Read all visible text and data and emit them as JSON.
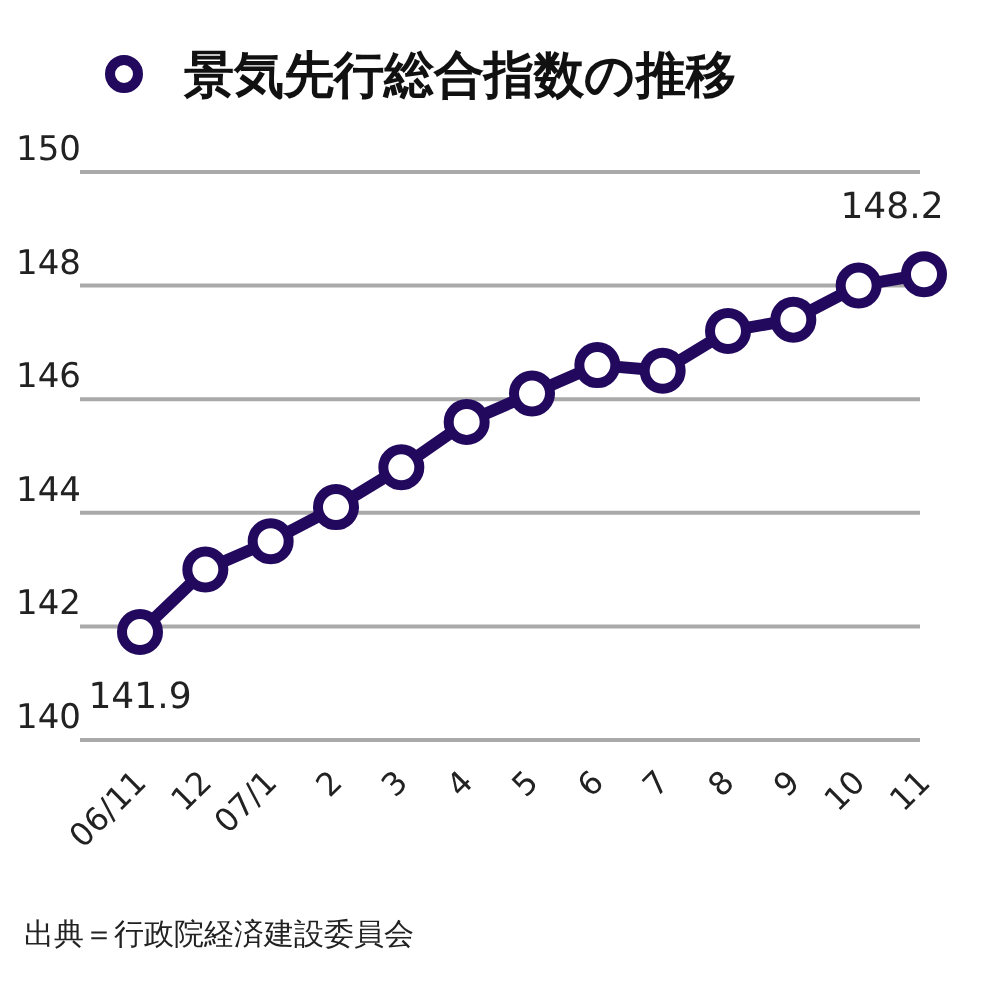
{
  "chart_data": {
    "type": "line",
    "categories": [
      "06/11",
      "12",
      "07/1",
      "2",
      "3",
      "4",
      "5",
      "6",
      "7",
      "8",
      "9",
      "10",
      "11"
    ],
    "series": [
      {
        "name": "景気先行総合指数の推移",
        "color": "#22095e",
        "values": [
          141.9,
          143.0,
          143.5,
          144.1,
          144.8,
          145.6,
          146.1,
          146.6,
          146.5,
          147.2,
          147.4,
          148.0,
          148.2
        ],
        "value_labels": [
          "141.9",
          null,
          null,
          null,
          null,
          null,
          null,
          null,
          null,
          null,
          null,
          null,
          "148.2"
        ]
      }
    ],
    "ylim": [
      140,
      150
    ],
    "yticks": [
      140,
      142,
      144,
      146,
      148,
      150
    ],
    "grid": "y",
    "legend": "top",
    "marker": "circle",
    "line_style": "solid",
    "annotations": [
      "出典＝行政院経済建設委員会"
    ]
  }
}
